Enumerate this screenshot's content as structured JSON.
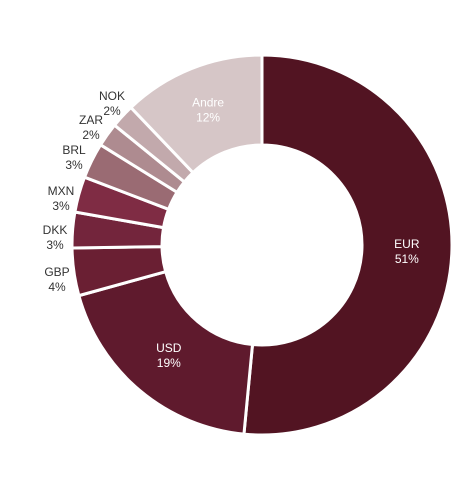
{
  "chart_data": {
    "type": "pie",
    "donut": true,
    "title": "",
    "start_angle_deg": 0,
    "direction": "clockwise",
    "slices": [
      {
        "label": "EUR",
        "percent_label": "51%",
        "value": 51,
        "color": "#521422",
        "text_color": "#ffffff",
        "label_position": "inside"
      },
      {
        "label": "USD",
        "percent_label": "19%",
        "value": 19,
        "color": "#5f1a2d",
        "text_color": "#ffffff",
        "label_position": "inside"
      },
      {
        "label": "GBP",
        "percent_label": "4%",
        "value": 4,
        "color": "#6a1f33",
        "text_color": "#333333",
        "label_position": "outside"
      },
      {
        "label": "DKK",
        "percent_label": "3%",
        "value": 3,
        "color": "#73253c",
        "text_color": "#333333",
        "label_position": "outside"
      },
      {
        "label": "MXN",
        "percent_label": "3%",
        "value": 3,
        "color": "#7f2c44",
        "text_color": "#333333",
        "label_position": "outside"
      },
      {
        "label": "BRL",
        "percent_label": "3%",
        "value": 3,
        "color": "#9a6b73",
        "text_color": "#333333",
        "label_position": "outside"
      },
      {
        "label": "ZAR",
        "percent_label": "2%",
        "value": 2,
        "color": "#ae8b90",
        "text_color": "#333333",
        "label_position": "outside"
      },
      {
        "label": "NOK",
        "percent_label": "2%",
        "value": 2,
        "color": "#c2a9ac",
        "text_color": "#333333",
        "label_position": "outside"
      },
      {
        "label": "Andre",
        "percent_label": "12%",
        "value": 12,
        "color": "#d6c6c7",
        "text_color": "#ffffff",
        "label_position": "inside"
      }
    ]
  }
}
